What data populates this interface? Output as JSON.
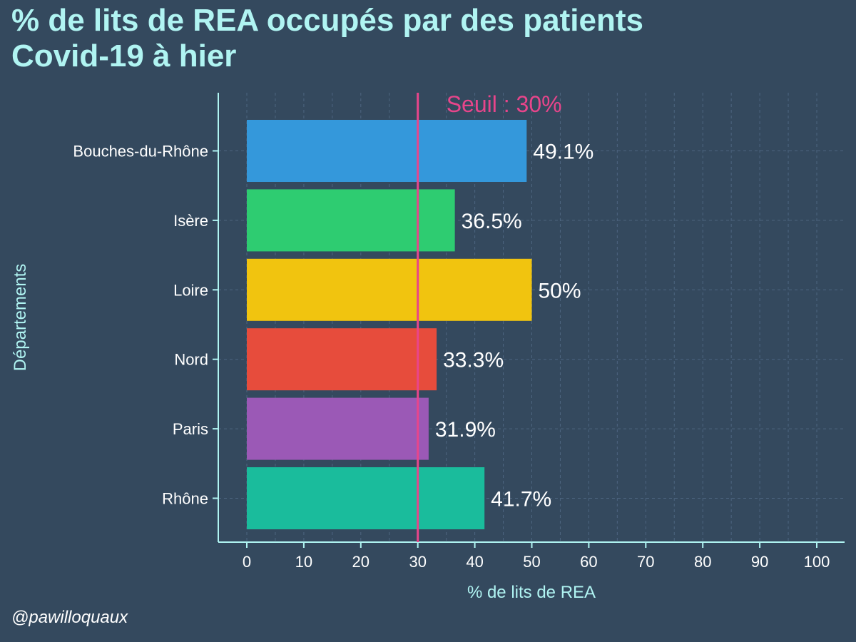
{
  "chart_data": {
    "type": "bar",
    "orientation": "horizontal",
    "title": "% de lits de REA occupés par des patients\n Covid-19 à hier",
    "xlabel": "% de lits de REA",
    "ylabel": "Départements",
    "categories": [
      "Bouches-du-Rhône",
      "Isère",
      "Loire",
      "Nord",
      "Paris",
      "Rhône"
    ],
    "values": [
      49.1,
      36.5,
      50,
      33.3,
      31.9,
      41.7
    ],
    "value_labels": [
      "49.1%",
      "36.5%",
      "50%",
      "33.3%",
      "31.9%",
      "41.7%"
    ],
    "colors": [
      "#3498db",
      "#2ecc71",
      "#f1c40f",
      "#e74c3c",
      "#9b59b6",
      "#1abc9c"
    ],
    "xlim": [
      0,
      100
    ],
    "xticks": [
      0,
      10,
      20,
      30,
      40,
      50,
      60,
      70,
      80,
      90,
      100
    ],
    "threshold": {
      "value": 30,
      "label": "Seuil : 30%",
      "color": "#e8458b"
    },
    "grid": true,
    "legend": "none",
    "caption": "@pawilloquaux"
  }
}
